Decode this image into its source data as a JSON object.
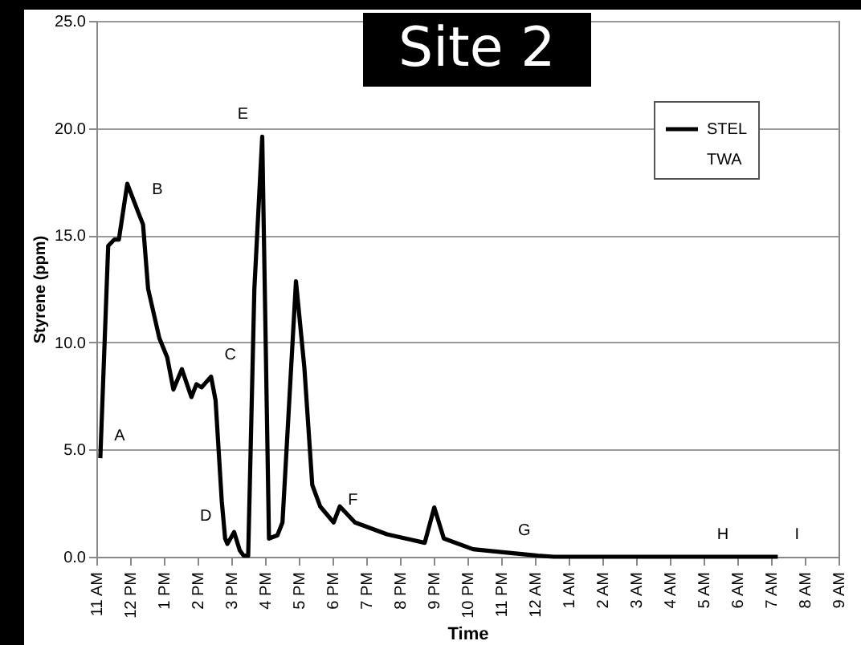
{
  "chart_data": {
    "type": "line",
    "title": "Site 2",
    "xlabel": "Time",
    "ylabel": "Styrene (ppm)",
    "x": [
      "--01-01T11:07",
      "--01-01T11:21",
      "--01-01T11:32",
      "--01-01T11:40",
      "--01-01T11:55",
      "--01-01T12:14",
      "--01-01T12:23",
      "--01-01T12:32",
      "--01-01T12:52",
      "--01-01T13:06",
      "--01-01T13:17",
      "--01-01T13:32",
      "--01-01T13:49",
      "--01-01T13:58",
      "--01-01T14:07",
      "--01-01T14:24",
      "--01-01T14:32",
      "--01-01T14:43",
      "--01-01T14:49",
      "--01-01T14:53",
      "--01-01T15:05",
      "--01-01T15:15",
      "--01-01T15:22",
      "--01-01T15:30",
      "--01-01T15:41",
      "--01-01T15:55",
      "--01-01T16:07",
      "--01-01T16:22",
      "--01-01T16:31",
      "--01-01T16:55",
      "--01-01T17:10",
      "--01-01T17:24",
      "--01-01T17:38",
      "--01-01T18:02",
      "--01-01T18:13",
      "--01-01T18:40",
      "--01-01T19:37",
      "--01-01T20:44",
      "--01-01T21:01",
      "--01-01T21:18",
      "--01-01T22:10",
      "--01-01T23:07",
      "--01-02T00:05",
      "--01-02T00:34",
      "--01-02T07:12"
    ],
    "series": [
      {
        "name": "STEL",
        "color": "#000000",
        "values": [
          4.6,
          14.5,
          14.8,
          14.8,
          17.4,
          16.1,
          15.5,
          12.5,
          10.2,
          9.3,
          7.8,
          8.75,
          7.45,
          8.05,
          7.9,
          8.4,
          7.3,
          2.6,
          0.85,
          0.6,
          1.15,
          0.3,
          0.05,
          0.05,
          12.5,
          19.6,
          0.85,
          1.0,
          1.6,
          12.85,
          8.8,
          3.35,
          2.35,
          1.6,
          2.35,
          1.6,
          1.05,
          0.65,
          2.3,
          0.85,
          0.35,
          0.2,
          0.05,
          0.0,
          0.0
        ]
      },
      {
        "name": "TWA",
        "values": [
          null,
          null,
          null,
          null,
          null,
          null,
          null,
          null,
          null,
          null,
          null,
          null,
          null,
          null,
          null,
          null,
          null,
          null,
          null,
          null,
          null,
          null,
          null,
          null,
          null,
          null,
          null,
          null,
          null,
          null,
          null,
          null,
          null,
          null,
          null,
          null,
          null,
          null,
          null,
          null,
          null,
          null,
          null,
          null,
          null
        ]
      }
    ],
    "xlim": [
      "--01-01T11:00",
      "--01-02T09:00"
    ],
    "xticks": [
      {
        "value": "--01-01T11:00",
        "label": "11 AM"
      },
      {
        "value": "--01-01T12:00",
        "label": "12 PM"
      },
      {
        "value": "--01-01T13:00",
        "label": "1 PM"
      },
      {
        "value": "--01-01T14:00",
        "label": "2 PM"
      },
      {
        "value": "--01-01T15:00",
        "label": "3 PM"
      },
      {
        "value": "--01-01T16:00",
        "label": "4 PM"
      },
      {
        "value": "--01-01T17:00",
        "label": "5 PM"
      },
      {
        "value": "--01-01T18:00",
        "label": "6 PM"
      },
      {
        "value": "--01-01T19:00",
        "label": "7 PM"
      },
      {
        "value": "--01-01T20:00",
        "label": "8 PM"
      },
      {
        "value": "--01-01T21:00",
        "label": "9 PM"
      },
      {
        "value": "--01-01T22:00",
        "label": "10 PM"
      },
      {
        "value": "--01-01T23:00",
        "label": "11 PM"
      },
      {
        "value": "--01-02T00:00",
        "label": "12 AM"
      },
      {
        "value": "--01-02T01:00",
        "label": "1 AM"
      },
      {
        "value": "--01-02T02:00",
        "label": "2 AM"
      },
      {
        "value": "--01-02T03:00",
        "label": "3 AM"
      },
      {
        "value": "--01-02T04:00",
        "label": "4 AM"
      },
      {
        "value": "--01-02T05:00",
        "label": "5 AM"
      },
      {
        "value": "--01-02T06:00",
        "label": "6 AM"
      },
      {
        "value": "--01-02T07:00",
        "label": "7 AM"
      },
      {
        "value": "--01-02T08:00",
        "label": "8 AM"
      },
      {
        "value": "--01-02T09:00",
        "label": "9 AM"
      }
    ],
    "ylim": [
      0,
      25
    ],
    "yticks": [
      {
        "value": 0,
        "label": "0.0"
      },
      {
        "value": 5,
        "label": "5.0"
      },
      {
        "value": 10,
        "label": "10.0"
      },
      {
        "value": 15,
        "label": "15.0"
      },
      {
        "value": 20,
        "label": "20.0"
      },
      {
        "value": 25,
        "label": "25.0"
      }
    ],
    "annotations": [
      {
        "text": "A",
        "x": "--01-01T11:07",
        "y": 4.6
      },
      {
        "text": "B",
        "x": "--01-01T12:14",
        "y": 16.1
      },
      {
        "text": "C",
        "x": "--01-01T14:24",
        "y": 8.4
      },
      {
        "text": "D",
        "x": "--01-01T14:49",
        "y": 0.85
      },
      {
        "text": "E",
        "x": "--01-01T15:55",
        "y": 19.6
      },
      {
        "text": "F",
        "x": "--01-01T18:02",
        "y": 1.6
      },
      {
        "text": "G",
        "x": "--01-01T23:07",
        "y": 0.2
      },
      {
        "text": "H",
        "x": "--01-02T05:00",
        "y": 0.0
      },
      {
        "text": "I",
        "x": "--01-02T07:12",
        "y": 0.0
      }
    ],
    "grid": "y",
    "legend": "top right",
    "line_style": "solid",
    "marker": "none"
  }
}
